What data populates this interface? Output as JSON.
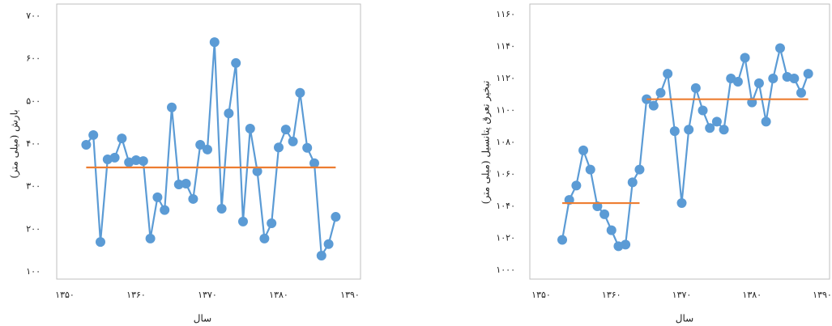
{
  "chart_data": [
    {
      "type": "line",
      "xlabel": "سال",
      "ylabel": "بارش (میلی متر)",
      "xlim": [
        1350,
        1390
      ],
      "ylim": [
        100,
        700
      ],
      "xticks": [
        {
          "value": 1350,
          "label": "۱۳۵۰"
        },
        {
          "value": 1360,
          "label": "۱۳۶۰"
        },
        {
          "value": 1370,
          "label": "۱۳۷۰"
        },
        {
          "value": 1380,
          "label": "۱۳۸۰"
        },
        {
          "value": 1390,
          "label": "۱۳۹۰"
        }
      ],
      "yticks": [
        {
          "value": 100,
          "label": "۱۰۰"
        },
        {
          "value": 200,
          "label": "۲۰۰"
        },
        {
          "value": 300,
          "label": "۳۰۰"
        },
        {
          "value": 400,
          "label": "۴۰۰"
        },
        {
          "value": 500,
          "label": "۵۰۰"
        },
        {
          "value": 600,
          "label": "۶۰۰"
        },
        {
          "value": 700,
          "label": "۷۰۰"
        }
      ],
      "series": [
        {
          "color": "#5b9bd5",
          "markers": true,
          "x": [
            1353,
            1354,
            1355,
            1356,
            1357,
            1358,
            1359,
            1360,
            1361,
            1362,
            1363,
            1364,
            1365,
            1366,
            1367,
            1368,
            1369,
            1370,
            1371,
            1372,
            1373,
            1374,
            1375,
            1376,
            1377,
            1378,
            1379,
            1380,
            1381,
            1382,
            1383,
            1384,
            1385,
            1386,
            1387,
            1388
          ],
          "values": [
            398,
            421,
            170,
            364,
            368,
            413,
            357,
            362,
            360,
            178,
            275,
            245,
            486,
            305,
            307,
            271,
            398,
            387,
            639,
            248,
            472,
            590,
            218,
            436,
            336,
            178,
            214,
            392,
            434,
            406,
            520,
            391,
            355,
            138,
            165,
            229
          ]
        },
        {
          "color": "#ed7d31",
          "markers": false,
          "x": [
            1353,
            1388
          ],
          "values": [
            345,
            345
          ]
        }
      ]
    },
    {
      "type": "line",
      "xlabel": "سال",
      "ylabel": "تبخیر تعرق پتانسیل (میلی متر)",
      "xlim": [
        1350,
        1390
      ],
      "ylim": [
        1000,
        1160
      ],
      "xticks": [
        {
          "value": 1350,
          "label": "۱۳۵۰"
        },
        {
          "value": 1360,
          "label": "۱۳۶۰"
        },
        {
          "value": 1370,
          "label": "۱۳۷۰"
        },
        {
          "value": 1380,
          "label": "۱۳۸۰"
        },
        {
          "value": 1390,
          "label": "۱۳۹۰"
        }
      ],
      "yticks": [
        {
          "value": 1000,
          "label": "۱۰۰۰"
        },
        {
          "value": 1020,
          "label": "۱۰۲۰"
        },
        {
          "value": 1040,
          "label": "۱۰۴۰"
        },
        {
          "value": 1060,
          "label": "۱۰۶۰"
        },
        {
          "value": 1080,
          "label": "۱۰۸۰"
        },
        {
          "value": 1100,
          "label": "۱۱۰۰"
        },
        {
          "value": 1120,
          "label": "۱۱۲۰"
        },
        {
          "value": 1140,
          "label": "۱۱۴۰"
        },
        {
          "value": 1160,
          "label": "۱۱۶۰"
        }
      ],
      "series": [
        {
          "color": "#5b9bd5",
          "markers": true,
          "x": [
            1353,
            1354,
            1355,
            1356,
            1357,
            1358,
            1359,
            1360,
            1361,
            1362,
            1363,
            1364,
            1365,
            1366,
            1367,
            1368,
            1369,
            1370,
            1371,
            1372,
            1373,
            1374,
            1375,
            1376,
            1377,
            1378,
            1379,
            1380,
            1381,
            1382,
            1383,
            1384,
            1385,
            1386,
            1387,
            1388
          ],
          "values": [
            1019,
            1044,
            1053,
            1075,
            1063,
            1040,
            1035,
            1025,
            1015,
            1016,
            1055,
            1063,
            1107,
            1103,
            1111,
            1123,
            1087,
            1042,
            1088,
            1114,
            1100,
            1089,
            1093,
            1088,
            1120,
            1118,
            1133,
            1105,
            1117,
            1093,
            1120,
            1139,
            1121,
            1120,
            1111,
            1123
          ]
        },
        {
          "color": "#ed7d31",
          "markers": false,
          "x": [
            1353,
            1364
          ],
          "values": [
            1042,
            1042
          ]
        },
        {
          "color": "#ed7d31",
          "markers": false,
          "x": [
            1365,
            1388
          ],
          "values": [
            1107,
            1107
          ]
        }
      ]
    }
  ]
}
